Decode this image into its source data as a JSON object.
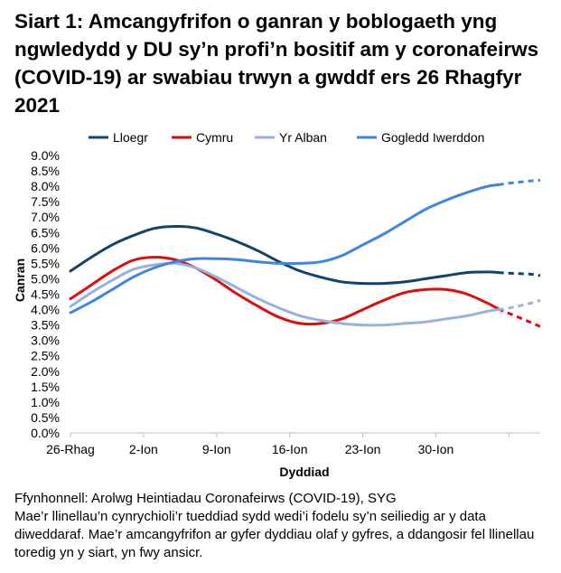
{
  "title": "Siart 1: Amcangyfrifon o ganran y boblogaeth yng ngwledydd y DU sy’n profi’n bositif am y coronafeirws (COVID-19) ar swabiau trwyn a gwddf ers 26 Rhagfyr 2021",
  "footer": {
    "source": "Ffynhonnell: Arolwg Heintiadau Coronafeirws (COVID-19), SYG",
    "note1": "Mae’r llinellau’n cynrychioli’r tueddiad sydd wedi’i fodelu sy’n seiliedig ar y data diweddaraf. Mae’r amcangyfrifon ar gyfer dyddiau olaf y gyfres, a ddangosir fel llinellau toredig yn y siart, yn fwy ansicr."
  },
  "chart_data": {
    "type": "line",
    "title": "",
    "xlabel": "Dyddiad",
    "ylabel": "Canran",
    "ylim": [
      0,
      9
    ],
    "ytick_step": 0.5,
    "ytick_labels": [
      "0.0%",
      "0.5%",
      "1.0%",
      "1.5%",
      "2.0%",
      "2.5%",
      "3.0%",
      "3.5%",
      "4.0%",
      "4.5%",
      "5.0%",
      "5.5%",
      "6.0%",
      "6.5%",
      "7.0%",
      "7.5%",
      "8.0%",
      "8.5%",
      "9.0%"
    ],
    "x_categories": [
      "26-Rhag",
      "2-Ion",
      "9-Ion",
      "16-Ion",
      "23-Ion",
      "30-Ion"
    ],
    "x_days": [
      0,
      7,
      14,
      21,
      28,
      35
    ],
    "xlim": [
      0,
      45
    ],
    "grid": false,
    "legend_position": "top",
    "dashed_from_day": 41,
    "series": [
      {
        "name": "Lloegr",
        "color": "#12436D",
        "x": [
          0,
          2,
          4,
          6,
          8,
          10,
          12,
          14,
          16,
          18,
          20,
          22,
          24,
          26,
          28,
          30,
          32,
          34,
          36,
          38,
          40,
          41,
          42,
          44,
          45
        ],
        "y": [
          5.25,
          5.7,
          6.1,
          6.4,
          6.63,
          6.7,
          6.65,
          6.45,
          6.2,
          5.9,
          5.55,
          5.25,
          5.05,
          4.9,
          4.85,
          4.85,
          4.9,
          5.0,
          5.1,
          5.2,
          5.22,
          5.2,
          5.18,
          5.15,
          5.1
        ]
      },
      {
        "name": "Cymru",
        "color": "#E00B0B",
        "x": [
          0,
          2,
          4,
          6,
          8,
          10,
          12,
          14,
          16,
          18,
          20,
          22,
          24,
          26,
          28,
          30,
          32,
          34,
          36,
          38,
          40,
          41,
          42,
          44,
          45
        ],
        "y": [
          4.35,
          4.8,
          5.25,
          5.6,
          5.7,
          5.62,
          5.35,
          4.95,
          4.5,
          4.1,
          3.75,
          3.55,
          3.55,
          3.7,
          4.0,
          4.3,
          4.55,
          4.65,
          4.65,
          4.5,
          4.2,
          4.02,
          3.88,
          3.6,
          3.45
        ]
      },
      {
        "name": "Yr Alban",
        "color": "#97B2DC",
        "x": [
          0,
          2,
          4,
          6,
          8,
          10,
          12,
          14,
          16,
          18,
          20,
          22,
          24,
          26,
          28,
          30,
          32,
          34,
          36,
          38,
          40,
          41,
          42,
          44,
          45
        ],
        "y": [
          4.1,
          4.55,
          4.95,
          5.3,
          5.45,
          5.5,
          5.35,
          5.05,
          4.7,
          4.35,
          4.05,
          3.8,
          3.65,
          3.55,
          3.5,
          3.5,
          3.55,
          3.6,
          3.7,
          3.8,
          3.95,
          4.0,
          4.05,
          4.2,
          4.3
        ]
      },
      {
        "name": "Gogledd Iwerddon",
        "color": "#3D86E0",
        "x": [
          0,
          2,
          4,
          6,
          8,
          10,
          12,
          14,
          16,
          18,
          20,
          22,
          24,
          26,
          28,
          30,
          32,
          34,
          36,
          38,
          40,
          41,
          42,
          44,
          45
        ],
        "y": [
          3.9,
          4.25,
          4.65,
          5.05,
          5.35,
          5.55,
          5.65,
          5.65,
          5.62,
          5.55,
          5.5,
          5.5,
          5.55,
          5.75,
          6.1,
          6.45,
          6.85,
          7.25,
          7.55,
          7.8,
          8.0,
          8.05,
          8.1,
          8.17,
          8.2
        ]
      }
    ]
  }
}
